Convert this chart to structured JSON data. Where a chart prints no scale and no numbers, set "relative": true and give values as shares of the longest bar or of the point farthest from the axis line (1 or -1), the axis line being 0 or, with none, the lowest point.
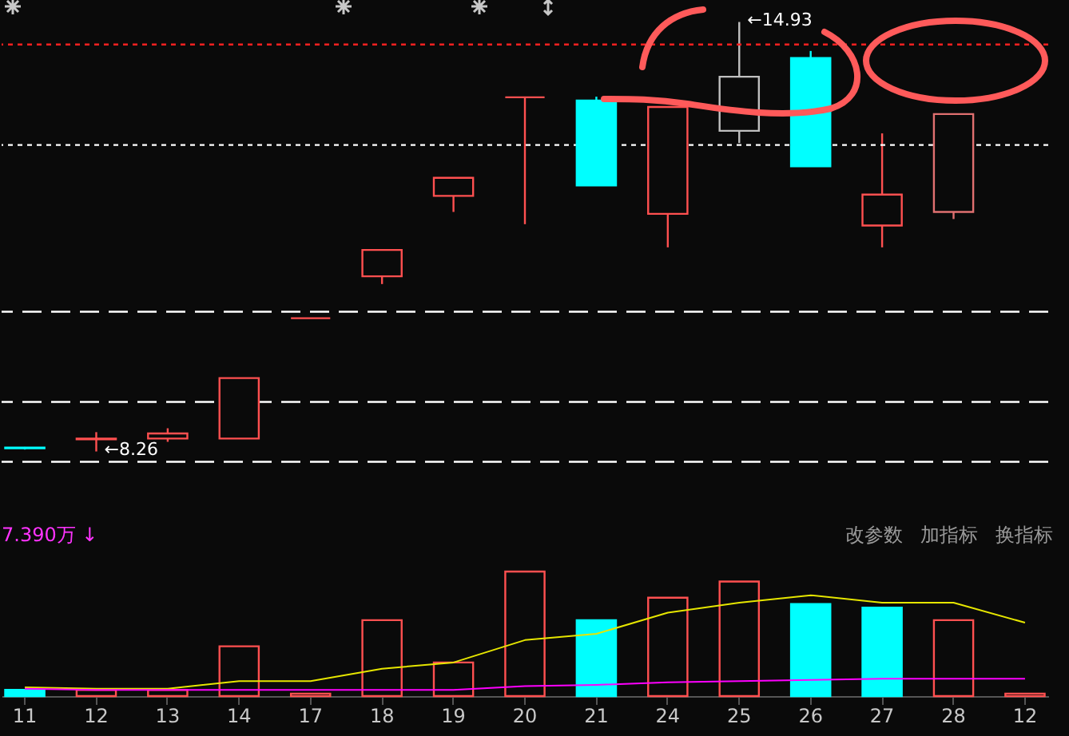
{
  "chart_data": [
    {
      "type": "candlestick",
      "categories": [
        "11",
        "12",
        "13",
        "14",
        "17",
        "18",
        "19",
        "20",
        "21",
        "24",
        "25",
        "26",
        "27",
        "28",
        "12"
      ],
      "ohlc": [
        [
          8.32,
          8.33,
          8.29,
          8.31
        ],
        [
          8.45,
          8.56,
          8.26,
          8.46
        ],
        [
          8.46,
          8.62,
          8.41,
          8.54
        ],
        [
          8.46,
          9.4,
          8.46,
          9.4
        ],
        [
          10.33,
          10.33,
          10.33,
          10.33
        ],
        [
          10.98,
          11.39,
          10.86,
          11.39
        ],
        [
          12.23,
          12.51,
          11.98,
          12.51
        ],
        [
          13.76,
          13.76,
          11.79,
          13.76
        ],
        [
          13.71,
          13.77,
          12.39,
          12.39
        ],
        [
          11.95,
          13.61,
          11.43,
          13.61
        ],
        [
          13.24,
          14.93,
          13.05,
          14.08
        ],
        [
          14.37,
          14.48,
          12.69,
          12.69
        ],
        [
          11.77,
          13.2,
          11.43,
          12.25
        ],
        [
          11.98,
          13.5,
          11.87,
          13.5
        ],
        null
      ],
      "colors": [
        "#00ffff",
        "#ff5050",
        "#ff5050",
        "#ff5050",
        "#ff5050",
        "#ff5050",
        "#ff5050",
        "#ff5050",
        "#00ffff",
        "#ff5050",
        "#c0c0c0",
        "#00ffff",
        "#ff5050",
        "#e07070",
        null
      ],
      "ref_lines": [
        {
          "axis": "y",
          "value": 14.58,
          "color": "#ff2020",
          "line_style": "dotted"
        },
        {
          "axis": "y",
          "value": 13.02,
          "color": "#ffffff",
          "line_style": "dotted"
        },
        {
          "axis": "y",
          "value": 10.43,
          "color": "#ffffff",
          "line_style": "dashed"
        },
        {
          "axis": "y",
          "value": 9.03,
          "color": "#ffffff",
          "line_style": "dashed"
        },
        {
          "axis": "y",
          "value": 8.1,
          "color": "#ffffff",
          "line_style": "dashed"
        }
      ],
      "annotations": [
        {
          "text": "←14.93",
          "x": "25",
          "y": 14.93
        },
        {
          "text": "←8.26",
          "x": "12",
          "y": 8.26
        }
      ],
      "tick_labels": false
    },
    {
      "type": "bar",
      "relative": true,
      "categories": [
        "11",
        "12",
        "13",
        "14",
        "17",
        "18",
        "19",
        "20",
        "21",
        "24",
        "25",
        "26",
        "27",
        "28",
        "12"
      ],
      "series": [
        {
          "type": "bar",
          "values": [
            0.05,
            0.05,
            0.05,
            0.4,
            0.02,
            0.61,
            0.27,
            1.0,
            0.61,
            0.79,
            0.92,
            0.74,
            0.71,
            0.61,
            0.02
          ],
          "colors": [
            "#00ffff",
            "#ff5050",
            "#ff5050",
            "#ff5050",
            "#ff5050",
            "#ff5050",
            "#ff5050",
            "#ff5050",
            "#00ffff",
            "#ff5050",
            "#ff5050",
            "#00ffff",
            "#00ffff",
            "#ff5050",
            "#ff5050"
          ]
        },
        {
          "type": "line",
          "color": "#e6e600",
          "values": [
            0.07,
            0.06,
            0.06,
            0.12,
            0.12,
            0.22,
            0.27,
            0.45,
            0.5,
            0.67,
            0.75,
            0.81,
            0.75,
            0.75,
            0.59
          ]
        },
        {
          "type": "line",
          "color": "#ff00ff",
          "values": [
            0.06,
            0.05,
            0.05,
            0.05,
            0.05,
            0.05,
            0.05,
            0.08,
            0.09,
            0.11,
            0.12,
            0.13,
            0.14,
            0.14,
            0.14
          ]
        }
      ],
      "annotations": [
        "7.390万 ↓",
        "改参数",
        "加指标",
        "换指标"
      ]
    }
  ]
}
